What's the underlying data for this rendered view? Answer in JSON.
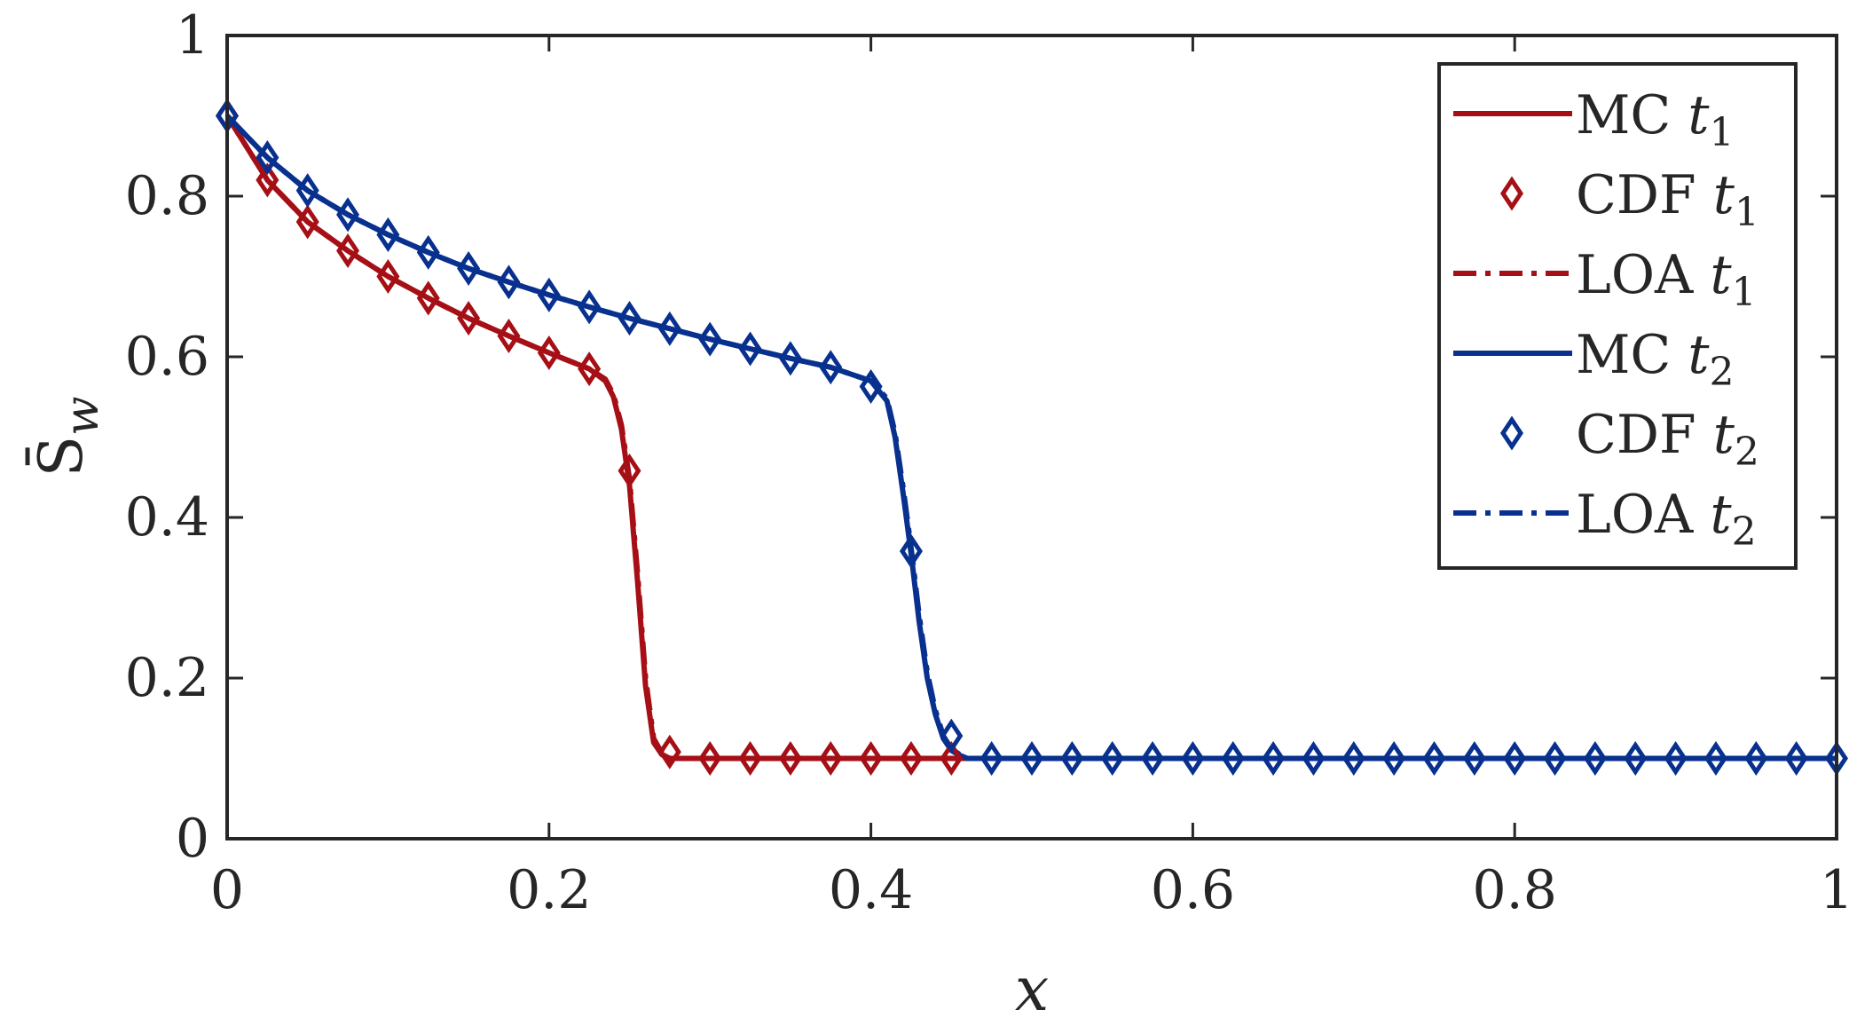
{
  "chart_data": {
    "type": "line",
    "xlabel": "x",
    "ylabel": "S̄_w",
    "xlim": [
      0,
      1
    ],
    "ylim": [
      0,
      1
    ],
    "x_ticks": [
      0,
      0.2,
      0.4,
      0.6,
      0.8,
      1
    ],
    "y_ticks": [
      0,
      0.2,
      0.4,
      0.6,
      0.8,
      1
    ],
    "x_tick_labels": [
      "0",
      "0.2",
      "0.4",
      "0.6",
      "0.8",
      "1"
    ],
    "y_tick_labels": [
      "0",
      "0.2",
      "0.4",
      "0.6",
      "0.8",
      "1"
    ],
    "grid": false,
    "legend_position": "top-right",
    "series": [
      {
        "name": "MC t1",
        "label_main": "MC",
        "label_sub": "1",
        "style": "solid",
        "color": "#a50f15",
        "x": [
          0,
          0.025,
          0.05,
          0.075,
          0.1,
          0.125,
          0.15,
          0.175,
          0.2,
          0.225,
          0.235,
          0.24,
          0.245,
          0.25,
          0.255,
          0.26,
          0.265,
          0.27,
          0.275,
          0.3,
          0.35,
          0.4,
          0.45,
          0.5
        ],
        "y": [
          0.9,
          0.82,
          0.768,
          0.732,
          0.7,
          0.673,
          0.648,
          0.626,
          0.605,
          0.585,
          0.57,
          0.55,
          0.51,
          0.44,
          0.32,
          0.19,
          0.12,
          0.105,
          0.1,
          0.1,
          0.1,
          0.1,
          0.1,
          0.1
        ]
      },
      {
        "name": "CDF t1",
        "label_main": "CDF",
        "label_sub": "1",
        "style": "marker",
        "color": "#a50f15",
        "x": [
          0,
          0.025,
          0.05,
          0.075,
          0.1,
          0.125,
          0.15,
          0.175,
          0.2,
          0.225,
          0.25,
          0.275,
          0.3,
          0.325,
          0.35,
          0.375,
          0.4,
          0.425,
          0.45
        ],
        "y": [
          0.9,
          0.82,
          0.768,
          0.732,
          0.7,
          0.673,
          0.648,
          0.626,
          0.605,
          0.585,
          0.458,
          0.108,
          0.1,
          0.1,
          0.1,
          0.1,
          0.1,
          0.1,
          0.1
        ]
      },
      {
        "name": "LOA t1",
        "label_main": "LOA",
        "label_sub": "1",
        "style": "dashdot",
        "color": "#a50f15",
        "x": [
          0,
          0.025,
          0.05,
          0.075,
          0.1,
          0.125,
          0.15,
          0.175,
          0.2,
          0.225,
          0.235,
          0.24,
          0.245,
          0.25,
          0.255,
          0.26,
          0.265,
          0.27,
          0.275,
          0.3,
          0.35,
          0.4,
          0.45,
          0.5
        ],
        "y": [
          0.9,
          0.82,
          0.768,
          0.732,
          0.7,
          0.673,
          0.648,
          0.626,
          0.605,
          0.585,
          0.572,
          0.553,
          0.515,
          0.448,
          0.33,
          0.2,
          0.125,
          0.107,
          0.1,
          0.1,
          0.1,
          0.1,
          0.1,
          0.1
        ]
      },
      {
        "name": "MC t2",
        "label_main": "MC",
        "label_sub": "2",
        "style": "solid",
        "color": "#08308e",
        "x": [
          0,
          0.025,
          0.05,
          0.075,
          0.1,
          0.125,
          0.15,
          0.175,
          0.2,
          0.225,
          0.25,
          0.275,
          0.3,
          0.325,
          0.35,
          0.375,
          0.4,
          0.41,
          0.415,
          0.42,
          0.425,
          0.43,
          0.435,
          0.44,
          0.445,
          0.45,
          0.455,
          0.46,
          0.475,
          0.5,
          0.55,
          0.6,
          0.65,
          0.7,
          0.75,
          0.8,
          0.85,
          0.9,
          0.95,
          1
        ],
        "y": [
          0.9,
          0.848,
          0.807,
          0.777,
          0.752,
          0.73,
          0.71,
          0.693,
          0.677,
          0.662,
          0.648,
          0.635,
          0.622,
          0.61,
          0.598,
          0.587,
          0.57,
          0.545,
          0.5,
          0.43,
          0.355,
          0.27,
          0.2,
          0.155,
          0.125,
          0.11,
          0.104,
          0.1,
          0.1,
          0.1,
          0.1,
          0.1,
          0.1,
          0.1,
          0.1,
          0.1,
          0.1,
          0.1,
          0.1,
          0.1
        ]
      },
      {
        "name": "CDF t2",
        "label_main": "CDF",
        "label_sub": "2",
        "style": "marker",
        "color": "#08308e",
        "x": [
          0,
          0.025,
          0.05,
          0.075,
          0.1,
          0.125,
          0.15,
          0.175,
          0.2,
          0.225,
          0.25,
          0.275,
          0.3,
          0.325,
          0.35,
          0.375,
          0.4,
          0.425,
          0.45,
          0.475,
          0.5,
          0.525,
          0.55,
          0.575,
          0.6,
          0.625,
          0.65,
          0.675,
          0.7,
          0.725,
          0.75,
          0.775,
          0.8,
          0.825,
          0.85,
          0.875,
          0.9,
          0.925,
          0.95,
          0.975,
          1
        ],
        "y": [
          0.9,
          0.848,
          0.807,
          0.777,
          0.752,
          0.73,
          0.71,
          0.693,
          0.677,
          0.662,
          0.648,
          0.635,
          0.622,
          0.61,
          0.598,
          0.587,
          0.563,
          0.358,
          0.128,
          0.1,
          0.1,
          0.1,
          0.1,
          0.1,
          0.1,
          0.1,
          0.1,
          0.1,
          0.1,
          0.1,
          0.1,
          0.1,
          0.1,
          0.1,
          0.1,
          0.1,
          0.1,
          0.1,
          0.1,
          0.1,
          0.1
        ]
      },
      {
        "name": "LOA t2",
        "label_main": "LOA",
        "label_sub": "2",
        "style": "dashdot",
        "color": "#08308e",
        "x": [
          0,
          0.025,
          0.05,
          0.075,
          0.1,
          0.125,
          0.15,
          0.175,
          0.2,
          0.225,
          0.25,
          0.275,
          0.3,
          0.325,
          0.35,
          0.375,
          0.4,
          0.41,
          0.415,
          0.42,
          0.425,
          0.43,
          0.435,
          0.44,
          0.445,
          0.45,
          0.455,
          0.46,
          0.475,
          0.5,
          0.55,
          0.6,
          0.65,
          0.7,
          0.75,
          0.8,
          0.85,
          0.9,
          0.95,
          1
        ],
        "y": [
          0.9,
          0.848,
          0.807,
          0.777,
          0.752,
          0.73,
          0.71,
          0.693,
          0.677,
          0.662,
          0.648,
          0.635,
          0.622,
          0.61,
          0.598,
          0.587,
          0.57,
          0.548,
          0.505,
          0.437,
          0.362,
          0.278,
          0.207,
          0.16,
          0.128,
          0.112,
          0.105,
          0.1,
          0.1,
          0.1,
          0.1,
          0.1,
          0.1,
          0.1,
          0.1,
          0.1,
          0.1,
          0.1,
          0.1,
          0.1
        ]
      }
    ]
  }
}
